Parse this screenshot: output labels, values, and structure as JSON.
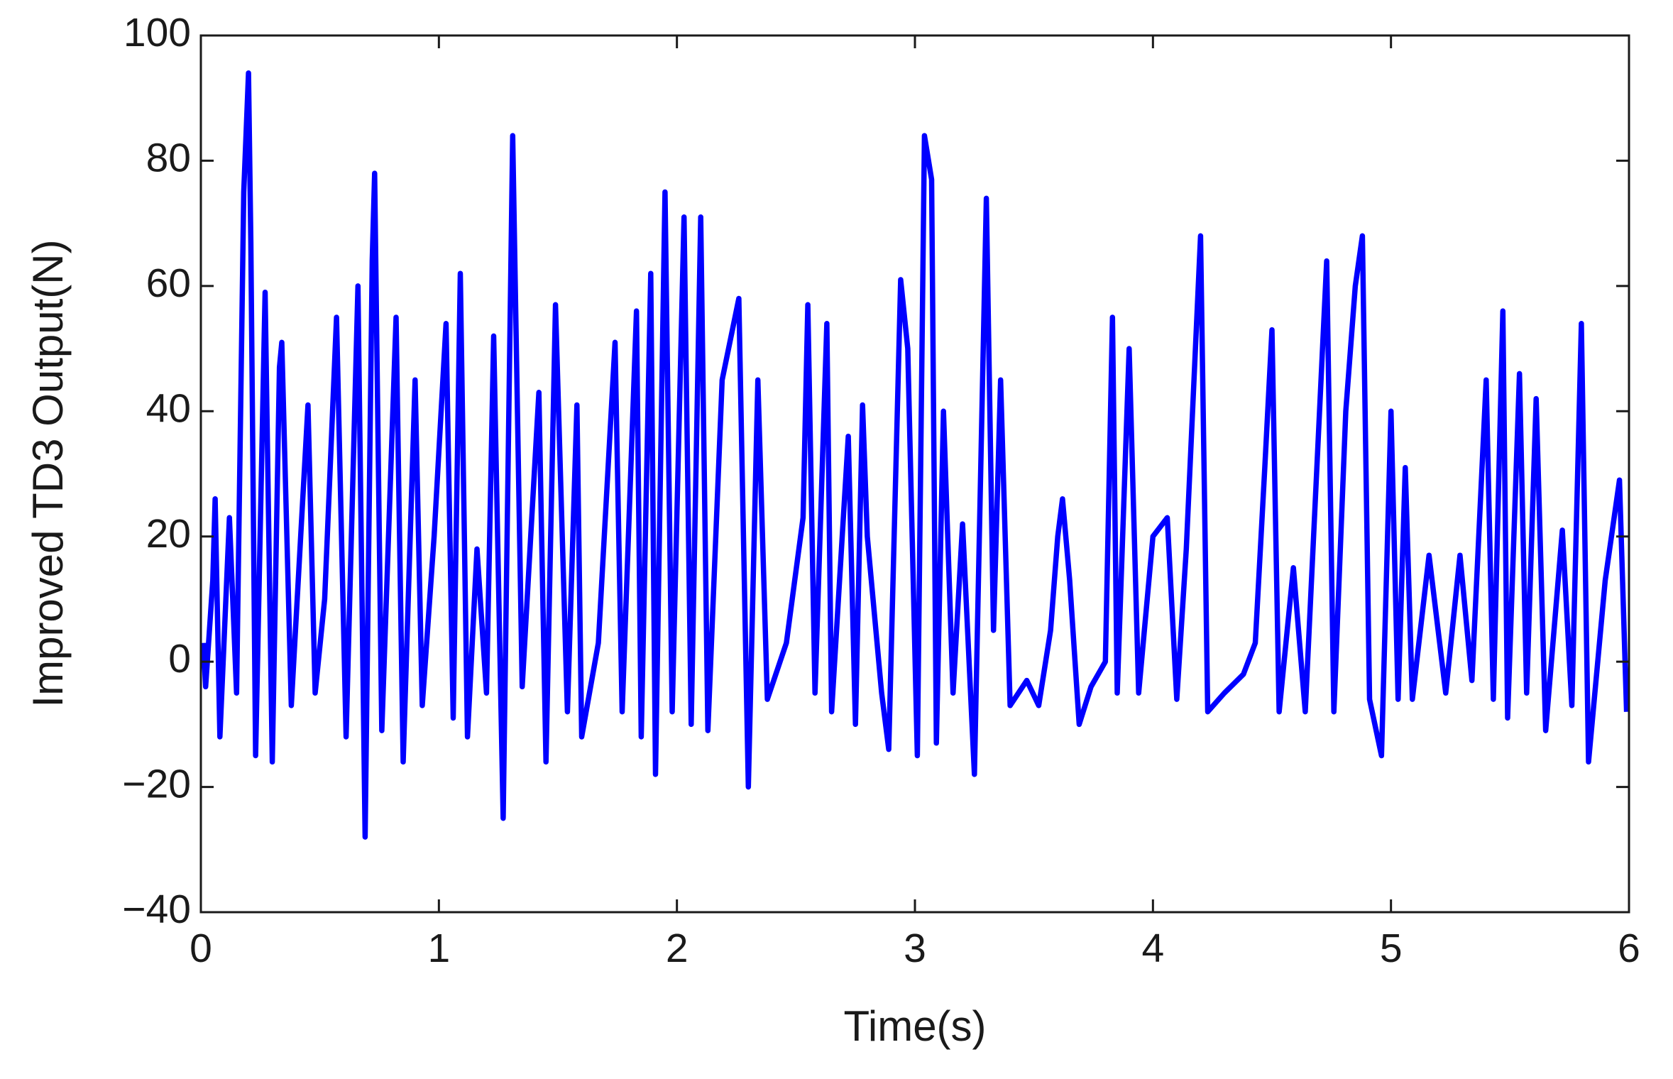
{
  "chart_data": {
    "type": "line",
    "xlabel": "Time(s)",
    "ylabel": "Improved TD3 Output(N)",
    "color": "#0000ff",
    "x": [
      0.01,
      0.02,
      0.05,
      0.06,
      0.08,
      0.12,
      0.15,
      0.18,
      0.2,
      0.21,
      0.23,
      0.27,
      0.3,
      0.33,
      0.34,
      0.38,
      0.45,
      0.48,
      0.52,
      0.57,
      0.61,
      0.66,
      0.69,
      0.72,
      0.73,
      0.76,
      0.82,
      0.85,
      0.9,
      0.93,
      0.98,
      1.03,
      1.06,
      1.09,
      1.12,
      1.16,
      1.2,
      1.23,
      1.27,
      1.31,
      1.35,
      1.42,
      1.45,
      1.49,
      1.54,
      1.58,
      1.6,
      1.67,
      1.74,
      1.77,
      1.83,
      1.85,
      1.89,
      1.91,
      1.95,
      1.98,
      2.03,
      2.06,
      2.1,
      2.13,
      2.19,
      2.26,
      2.3,
      2.34,
      2.38,
      2.46,
      2.53,
      2.55,
      2.58,
      2.63,
      2.65,
      2.72,
      2.75,
      2.78,
      2.8,
      2.86,
      2.89,
      2.94,
      2.97,
      3.01,
      3.04,
      3.07,
      3.09,
      3.12,
      3.16,
      3.2,
      3.25,
      3.3,
      3.33,
      3.36,
      3.4,
      3.47,
      3.52,
      3.57,
      3.6,
      3.62,
      3.65,
      3.69,
      3.74,
      3.8,
      3.83,
      3.85,
      3.9,
      3.94,
      4.0,
      4.06,
      4.1,
      4.14,
      4.2,
      4.23,
      4.3,
      4.38,
      4.43,
      4.47,
      4.5,
      4.53,
      4.59,
      4.64,
      4.73,
      4.76,
      4.81,
      4.85,
      4.88,
      4.91,
      4.96,
      5.0,
      5.03,
      5.06,
      5.09,
      5.16,
      5.23,
      5.29,
      5.34,
      5.4,
      5.43,
      5.47,
      5.49,
      5.54,
      5.57,
      5.61,
      5.65,
      5.72,
      5.76,
      5.8,
      5.83,
      5.9,
      5.96,
      5.99
    ],
    "values": [
      3,
      -4,
      13,
      26,
      -12,
      23,
      -5,
      75,
      94,
      67,
      -15,
      59,
      -16,
      47,
      51,
      -7,
      41,
      -5,
      10,
      55,
      -12,
      60,
      -28,
      64,
      78,
      -11,
      55,
      -16,
      45,
      -7,
      20,
      54,
      -9,
      62,
      -12,
      18,
      -5,
      52,
      -25,
      84,
      -4,
      43,
      -16,
      57,
      -8,
      41,
      -12,
      3,
      51,
      -8,
      56,
      -12,
      62,
      -18,
      75,
      -8,
      71,
      -10,
      71,
      -11,
      45,
      58,
      -20,
      45,
      -6,
      3,
      23,
      57,
      -5,
      54,
      -8,
      36,
      -10,
      41,
      20,
      -5,
      -14,
      61,
      50,
      -15,
      84,
      77,
      -13,
      40,
      -5,
      22,
      -18,
      74,
      5,
      45,
      -7,
      -3,
      -7,
      5,
      20,
      26,
      13,
      -10,
      -4,
      0,
      55,
      -5,
      50,
      -5,
      20,
      23,
      -6,
      18,
      68,
      -8,
      -5,
      -2,
      3,
      31,
      53,
      -8,
      15,
      -8,
      64,
      -8,
      40,
      60,
      68,
      -6,
      -15,
      40,
      -6,
      31,
      -6,
      17,
      -5,
      17,
      -3,
      45,
      -6,
      56,
      -9,
      46,
      -5,
      42,
      -11,
      21,
      -7,
      54,
      -16,
      13,
      29,
      -8
    ],
    "xlim": [
      0,
      6
    ],
    "xticks": [
      0,
      1,
      2,
      3,
      4,
      5,
      6
    ],
    "ylim": [
      -40,
      100
    ],
    "yticks": [
      {
        "value": -40,
        "label": "−40"
      },
      {
        "value": -20,
        "label": "−20"
      },
      0,
      20,
      40,
      60,
      80,
      100
    ]
  }
}
